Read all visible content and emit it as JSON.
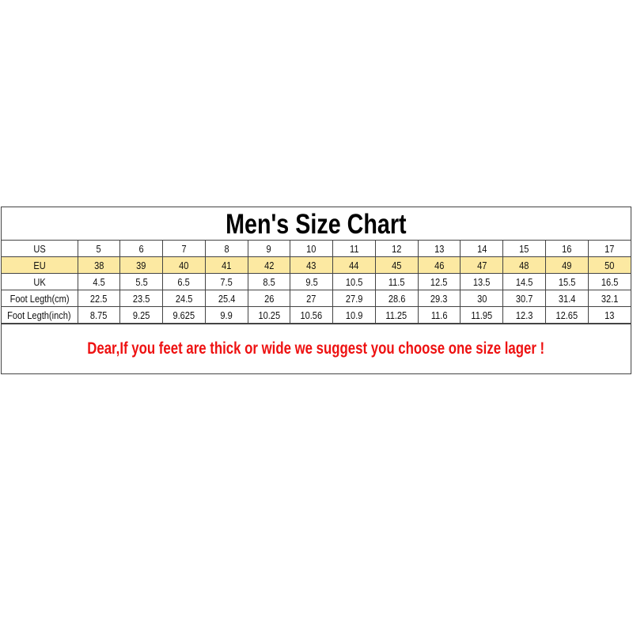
{
  "title": "Men's Size Chart",
  "rows": [
    {
      "label": "US",
      "values": [
        "5",
        "6",
        "7",
        "8",
        "9",
        "10",
        "11",
        "12",
        "13",
        "14",
        "15",
        "16",
        "17"
      ]
    },
    {
      "label": "EU",
      "values": [
        "38",
        "39",
        "40",
        "41",
        "42",
        "43",
        "44",
        "45",
        "46",
        "47",
        "48",
        "49",
        "50"
      ],
      "highlight": "#fce9a2"
    },
    {
      "label": "UK",
      "values": [
        "4.5",
        "5.5",
        "6.5",
        "7.5",
        "8.5",
        "9.5",
        "10.5",
        "11.5",
        "12.5",
        "13.5",
        "14.5",
        "15.5",
        "16.5"
      ]
    },
    {
      "label": "Foot Legth(cm)",
      "values": [
        "22.5",
        "23.5",
        "24.5",
        "25.4",
        "26",
        "27",
        "27.9",
        "28.6",
        "29.3",
        "30",
        "30.7",
        "31.4",
        "32.1"
      ]
    },
    {
      "label": "Foot Legth(inch)",
      "values": [
        "8.75",
        "9.25",
        "9.625",
        "9.9",
        "10.25",
        "10.56",
        "10.9",
        "11.25",
        "11.6",
        "11.95",
        "12.3",
        "12.65",
        "13"
      ]
    }
  ],
  "note": "Dear,If you feet are thick or wide we suggest you choose one size lager !",
  "note_color": "#ee1111"
}
